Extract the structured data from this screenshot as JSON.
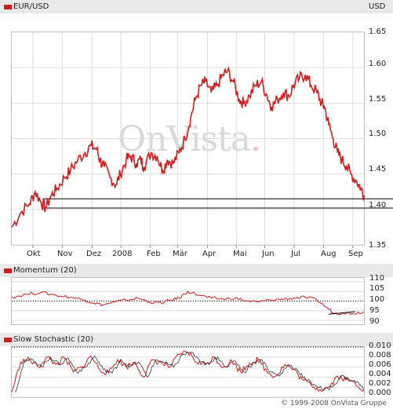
{
  "colors": {
    "series": "#d41b1b",
    "grid": "#dddddd",
    "black": "#000000"
  },
  "header": {
    "title": "EUR/USD",
    "unit": "USD"
  },
  "watermark": {
    "text": "OnVista",
    "dot": "."
  },
  "copyright": "© 1999-2008 OnVista Gruppe",
  "months": [
    "Okt",
    "Nov",
    "Dez",
    "2008",
    "Feb",
    "Mär",
    "Apr",
    "Mai",
    "Jun",
    "Jul",
    "Aug",
    "Sep"
  ],
  "chart_data": [
    {
      "type": "line",
      "title": "EUR/USD",
      "unit": "USD",
      "ylim": [
        1.35,
        1.65
      ],
      "yticks": [
        "1.65",
        "1.60",
        "1.55",
        "1.50",
        "1.45",
        "1.40",
        "1.35"
      ],
      "xlim": [
        0,
        12
      ],
      "categories": [
        "Okt",
        "Nov",
        "Dez",
        "2008",
        "Feb",
        "Mär",
        "Apr",
        "Mai",
        "Jun",
        "Jul",
        "Aug",
        "Sep"
      ],
      "month_positions": [
        0.72,
        1.72,
        2.74,
        3.72,
        4.72,
        5.65,
        6.67,
        7.65,
        8.62,
        9.62,
        10.62,
        11.62
      ],
      "reference_lines": [
        1.415,
        1.402
      ],
      "grid": true,
      "x": [
        0.0,
        0.3,
        0.6,
        0.8,
        1.0,
        1.15,
        1.35,
        1.55,
        1.8,
        2.0,
        2.25,
        2.5,
        2.7,
        2.9,
        3.0,
        3.15,
        3.35,
        3.55,
        3.7,
        3.9,
        4.05,
        4.25,
        4.4,
        4.5,
        4.75,
        4.95,
        5.15,
        5.3,
        5.5,
        5.7,
        5.9,
        6.1,
        6.25,
        6.45,
        6.6,
        6.8,
        7.0,
        7.2,
        7.35,
        7.55,
        7.75,
        7.9,
        8.1,
        8.3,
        8.5,
        8.7,
        8.85,
        9.05,
        9.25,
        9.45,
        9.6,
        9.8,
        10.0,
        10.2,
        10.4,
        10.55,
        10.65,
        10.8,
        10.95,
        11.1,
        11.25,
        11.4,
        11.55,
        11.75,
        11.9,
        12.0
      ],
      "y": [
        1.375,
        1.395,
        1.408,
        1.425,
        1.41,
        1.402,
        1.42,
        1.43,
        1.445,
        1.455,
        1.47,
        1.48,
        1.49,
        1.485,
        1.47,
        1.46,
        1.445,
        1.435,
        1.45,
        1.47,
        1.475,
        1.465,
        1.47,
        1.46,
        1.48,
        1.475,
        1.455,
        1.47,
        1.465,
        1.48,
        1.5,
        1.53,
        1.555,
        1.575,
        1.58,
        1.565,
        1.575,
        1.59,
        1.595,
        1.58,
        1.555,
        1.55,
        1.56,
        1.575,
        1.58,
        1.56,
        1.545,
        1.555,
        1.565,
        1.56,
        1.575,
        1.585,
        1.59,
        1.575,
        1.565,
        1.55,
        1.545,
        1.52,
        1.5,
        1.48,
        1.47,
        1.462,
        1.45,
        1.44,
        1.43,
        1.42
      ]
    },
    {
      "type": "line",
      "title": "Momentum (20)",
      "ylim": [
        88,
        112
      ],
      "yticks": [
        "110",
        "105",
        "100",
        "95",
        "90"
      ],
      "reference_lines": [
        100
      ],
      "x": [
        0.0,
        0.5,
        1.0,
        1.5,
        2.0,
        2.5,
        2.8,
        3.1,
        3.5,
        3.9,
        4.3,
        4.7,
        5.1,
        5.4,
        5.7,
        6.0,
        6.4,
        6.8,
        7.2,
        7.6,
        8.0,
        8.4,
        8.8,
        9.2,
        9.6,
        10.0,
        10.4,
        10.7,
        11.0,
        11.3,
        11.6,
        12.0
      ],
      "y": [
        102.0,
        103.5,
        104.5,
        103.0,
        102.0,
        100.5,
        99.0,
        98.0,
        99.5,
        100.5,
        101.5,
        99.5,
        99.0,
        100.5,
        101.5,
        105.0,
        103.0,
        101.5,
        101.0,
        101.5,
        100.0,
        99.5,
        100.5,
        101.0,
        101.5,
        102.0,
        100.5,
        97.0,
        93.5,
        94.0,
        93.5,
        94.5
      ]
    },
    {
      "type": "line",
      "title": "Slow Stochastic (20)",
      "ylim": [
        0.0,
        0.01
      ],
      "yticks": [
        "0.010",
        "0.008",
        "0.006",
        "0.004",
        "0.002",
        "0.000"
      ],
      "reference_lines": [
        0.01
      ],
      "x": [
        0.0,
        0.3,
        0.6,
        0.9,
        1.2,
        1.5,
        1.8,
        2.1,
        2.4,
        2.7,
        3.0,
        3.3,
        3.6,
        3.9,
        4.2,
        4.5,
        4.8,
        5.1,
        5.4,
        5.7,
        6.0,
        6.3,
        6.6,
        6.9,
        7.2,
        7.5,
        7.8,
        8.1,
        8.4,
        8.7,
        9.0,
        9.3,
        9.6,
        9.9,
        10.2,
        10.5,
        10.8,
        11.1,
        11.4,
        11.7,
        12.0
      ],
      "y": [
        0.001,
        0.007,
        0.0075,
        0.006,
        0.008,
        0.0065,
        0.0078,
        0.005,
        0.006,
        0.0082,
        0.0055,
        0.0048,
        0.0075,
        0.006,
        0.007,
        0.004,
        0.0075,
        0.0068,
        0.006,
        0.0085,
        0.009,
        0.007,
        0.0065,
        0.008,
        0.006,
        0.0072,
        0.005,
        0.0068,
        0.0075,
        0.005,
        0.0042,
        0.0065,
        0.0055,
        0.0035,
        0.0025,
        0.0015,
        0.002,
        0.0042,
        0.0035,
        0.0028,
        0.0015
      ]
    }
  ]
}
